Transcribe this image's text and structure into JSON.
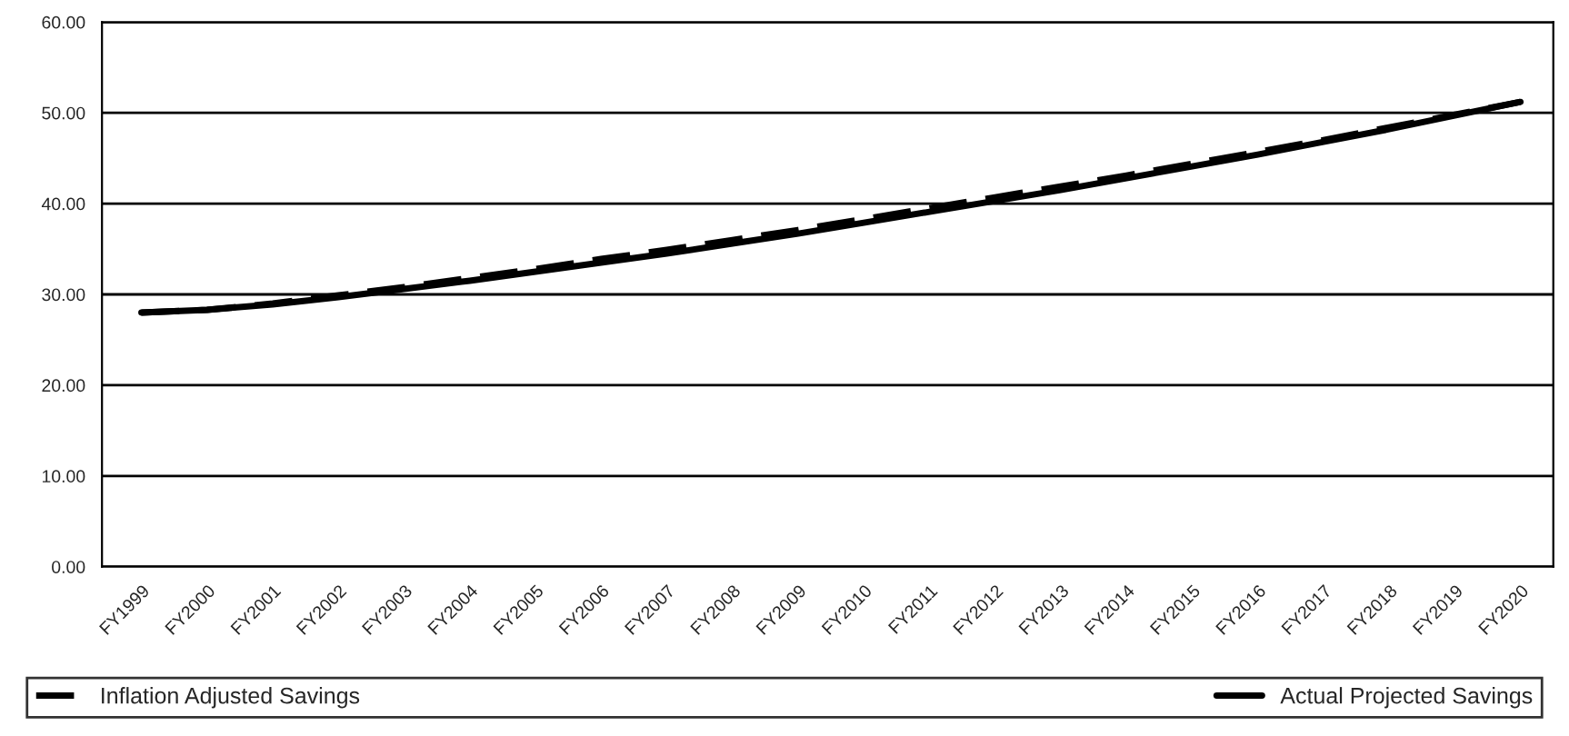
{
  "chart_data": {
    "type": "line",
    "categories": [
      "FY1999",
      "FY2000",
      "FY2001",
      "FY2002",
      "FY2003",
      "FY2004",
      "FY2005",
      "FY2006",
      "FY2007",
      "FY2008",
      "FY2009",
      "FY2010",
      "FY2011",
      "FY2012",
      "FY2013",
      "FY2014",
      "FY2015",
      "FY2016",
      "FY2017",
      "FY2018",
      "FY2019",
      "FY2020"
    ],
    "series": [
      {
        "name": "Inflation Adjusted Savings",
        "color": "#000000",
        "line_style": "dashed",
        "values": [
          28.0,
          28.3,
          29.0,
          29.9,
          30.8,
          31.8,
          32.8,
          33.9,
          34.9,
          36.0,
          37.1,
          38.3,
          39.5,
          40.7,
          41.9,
          43.1,
          44.4,
          45.7,
          47.0,
          48.4,
          49.8,
          51.2
        ]
      },
      {
        "name": "Actual Projected Savings",
        "color": "#000000",
        "line_style": "solid",
        "values": [
          28.0,
          28.3,
          28.9,
          29.7,
          30.6,
          31.5,
          32.5,
          33.5,
          34.5,
          35.6,
          36.7,
          37.9,
          39.1,
          40.3,
          41.5,
          42.8,
          44.1,
          45.4,
          46.8,
          48.2,
          49.7,
          51.2
        ]
      }
    ],
    "ylim": [
      0,
      60
    ],
    "yticks": [
      {
        "value": 0,
        "label": "0.00"
      },
      {
        "value": 10,
        "label": "10.00"
      },
      {
        "value": 20,
        "label": "20.00"
      },
      {
        "value": 30,
        "label": "30.00"
      },
      {
        "value": 40,
        "label": "40.00"
      },
      {
        "value": 50,
        "label": "50.00"
      },
      {
        "value": 60,
        "label": "60.00"
      }
    ],
    "grid": "y",
    "legend": "bottom",
    "marker": "none"
  }
}
